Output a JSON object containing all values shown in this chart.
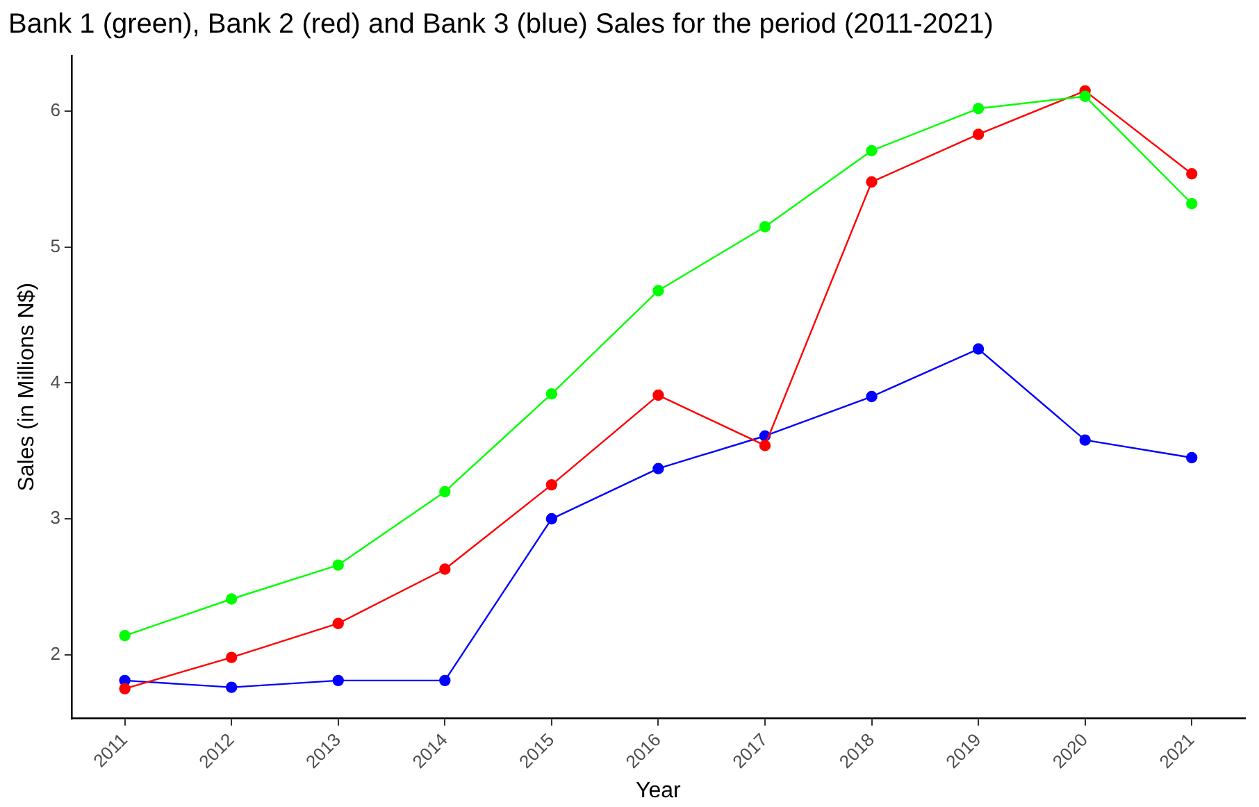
{
  "chart_data": {
    "type": "line",
    "title": "Bank 1 (green), Bank 2 (red) and Bank 3 (blue) Sales for the period (2011-2021)",
    "xlabel": "Year",
    "ylabel": "Sales (in Millions N$)",
    "categories": [
      "2011",
      "2012",
      "2013",
      "2014",
      "2015",
      "2016",
      "2017",
      "2018",
      "2019",
      "2020",
      "2021"
    ],
    "series": [
      {
        "color": "#00ff00",
        "values": [
          2.14,
          2.41,
          2.66,
          3.2,
          3.92,
          4.68,
          5.15,
          5.71,
          6.02,
          6.11,
          5.32
        ]
      },
      {
        "color": "#ff0000",
        "values": [
          1.75,
          1.98,
          2.23,
          2.63,
          3.25,
          3.91,
          3.54,
          5.48,
          5.83,
          6.15,
          5.54
        ]
      },
      {
        "color": "#0000ff",
        "values": [
          1.81,
          1.76,
          1.81,
          1.81,
          3.0,
          3.37,
          3.61,
          3.9,
          4.25,
          3.58,
          3.45
        ]
      }
    ],
    "ylim": [
      1.53,
      6.41
    ],
    "yticks": [
      2,
      3,
      4,
      5,
      6
    ],
    "grid": false,
    "legend": false,
    "marker": "circle",
    "line_style": "solid"
  }
}
